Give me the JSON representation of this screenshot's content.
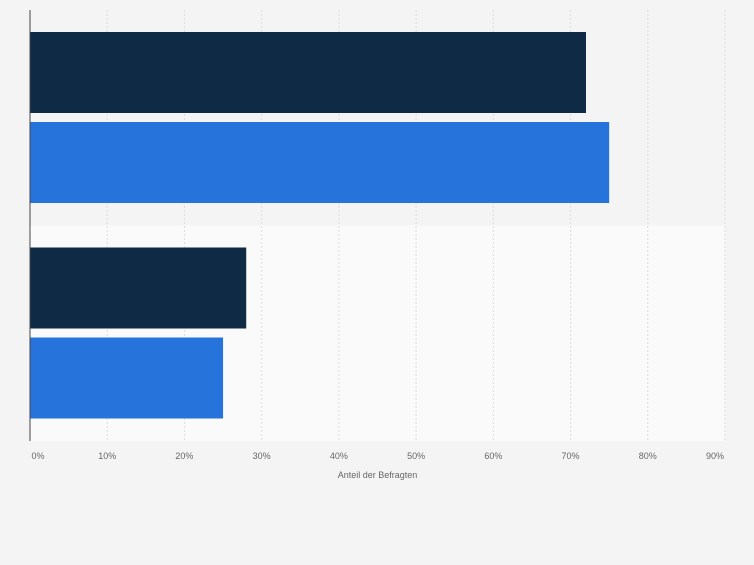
{
  "chart_data": {
    "type": "bar",
    "orientation": "horizontal",
    "categories": [
      "",
      ""
    ],
    "series": [
      {
        "color": "#0f2a44",
        "values": [
          72,
          28
        ]
      },
      {
        "color": "#2673dc",
        "values": [
          75,
          25
        ]
      }
    ],
    "xlabel": "Anteil der Befragten",
    "xlim": [
      0,
      90
    ],
    "xticks": [
      0,
      10,
      20,
      30,
      40,
      50,
      60,
      70,
      80,
      90
    ],
    "tick_suffix": "%",
    "grid": true,
    "legend": "none",
    "colors": {
      "page_background": "#f4f4f4",
      "alternate_band": "#fafafa",
      "gridline": "#dddddd",
      "axis_line": "#444444",
      "tick_label": "#666666"
    }
  }
}
